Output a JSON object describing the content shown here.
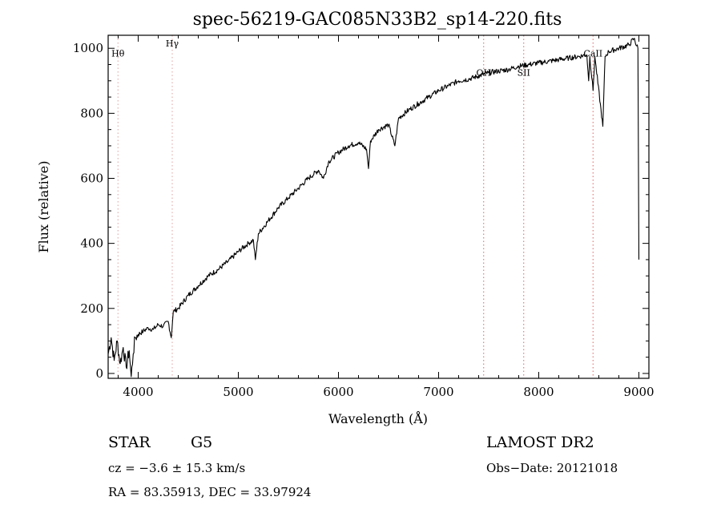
{
  "chart_data": {
    "type": "line",
    "title": "spec-56219-GAC085N33B2_sp14-220.fits",
    "xlabel": "Wavelength (Å)",
    "ylabel": "Flux (relative)",
    "xlim": [
      3700,
      9100
    ],
    "ylim": [
      -15,
      1040
    ],
    "xticks": [
      4000,
      5000,
      6000,
      7000,
      8000,
      9000
    ],
    "yticks": [
      0,
      200,
      400,
      600,
      800,
      1000
    ],
    "grid": false,
    "series": [
      {
        "points": [
          [
            3700,
            60
          ],
          [
            3730,
            110
          ],
          [
            3760,
            40
          ],
          [
            3790,
            100
          ],
          [
            3820,
            30
          ],
          [
            3850,
            80
          ],
          [
            3880,
            20
          ],
          [
            3910,
            70
          ],
          [
            3930,
            -10
          ],
          [
            3950,
            60
          ],
          [
            3970,
            110
          ],
          [
            4000,
            120
          ],
          [
            4050,
            130
          ],
          [
            4100,
            140
          ],
          [
            4150,
            135
          ],
          [
            4200,
            150
          ],
          [
            4250,
            145
          ],
          [
            4300,
            160
          ],
          [
            4330,
            110
          ],
          [
            4350,
            190
          ],
          [
            4400,
            200
          ],
          [
            4500,
            240
          ],
          [
            4600,
            270
          ],
          [
            4700,
            300
          ],
          [
            4800,
            320
          ],
          [
            4900,
            345
          ],
          [
            5000,
            375
          ],
          [
            5100,
            400
          ],
          [
            5150,
            410
          ],
          [
            5170,
            350
          ],
          [
            5200,
            430
          ],
          [
            5300,
            470
          ],
          [
            5400,
            510
          ],
          [
            5500,
            540
          ],
          [
            5600,
            570
          ],
          [
            5700,
            600
          ],
          [
            5800,
            625
          ],
          [
            5850,
            600
          ],
          [
            5900,
            650
          ],
          [
            6000,
            680
          ],
          [
            6100,
            700
          ],
          [
            6200,
            710
          ],
          [
            6280,
            690
          ],
          [
            6300,
            630
          ],
          [
            6320,
            715
          ],
          [
            6400,
            750
          ],
          [
            6500,
            765
          ],
          [
            6563,
            700
          ],
          [
            6600,
            785
          ],
          [
            6700,
            810
          ],
          [
            6800,
            830
          ],
          [
            6900,
            850
          ],
          [
            7000,
            870
          ],
          [
            7100,
            885
          ],
          [
            7200,
            900
          ],
          [
            7300,
            905
          ],
          [
            7400,
            915
          ],
          [
            7500,
            925
          ],
          [
            7600,
            930
          ],
          [
            7700,
            935
          ],
          [
            7800,
            945
          ],
          [
            7900,
            950
          ],
          [
            8000,
            955
          ],
          [
            8100,
            960
          ],
          [
            8200,
            965
          ],
          [
            8300,
            970
          ],
          [
            8400,
            975
          ],
          [
            8480,
            980
          ],
          [
            8498,
            900
          ],
          [
            8510,
            975
          ],
          [
            8542,
            870
          ],
          [
            8560,
            975
          ],
          [
            8640,
            760
          ],
          [
            8662,
            975
          ],
          [
            8700,
            990
          ],
          [
            8800,
            1000
          ],
          [
            8900,
            1010
          ],
          [
            8950,
            1030
          ],
          [
            8990,
            1000
          ],
          [
            9000,
            350
          ]
        ]
      }
    ],
    "annotations": [
      {
        "label": "Hθ",
        "x": 3798,
        "color": "#e0a0a0",
        "label_y": 975
      },
      {
        "label": "Hγ",
        "x": 4340,
        "color": "#e0a0a0",
        "label_y": 1005
      },
      {
        "label": "OH",
        "x": 7450,
        "color": "#e06060",
        "label_y": 915
      },
      {
        "label": "SII",
        "x": 7850,
        "color": "#e06060",
        "label_y": 915
      },
      {
        "label": "CaII",
        "x": 8542,
        "color": "#e06060",
        "label_y": 975
      }
    ]
  },
  "info": {
    "class_label": "STAR",
    "subclass_label": "G5",
    "survey_label": "LAMOST DR2",
    "velocity_text": "cz = −3.6 ± 15.3 km/s",
    "obs_date_text": "Obs−Date: 20121018",
    "coords_text": "RA =  83.35913, DEC =  33.97924"
  }
}
